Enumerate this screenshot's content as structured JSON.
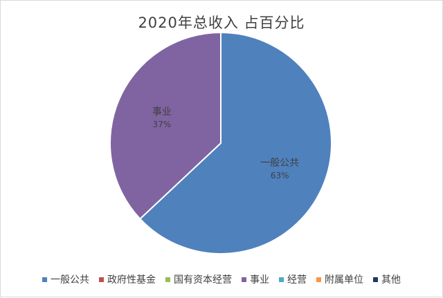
{
  "chart_data": {
    "type": "pie",
    "title": "2020年总收入 占百分比",
    "categories": [
      "一般公共",
      "政府性基金",
      "国有资本经营",
      "事业",
      "经营",
      "附属单位",
      "其他"
    ],
    "values": [
      63,
      0,
      0,
      37,
      0,
      0,
      0
    ],
    "colors": [
      "#4f81bd",
      "#c0504d",
      "#9bbb59",
      "#8064a2",
      "#4bacc6",
      "#f79646",
      "#1f3864"
    ],
    "data_labels": [
      {
        "category": "一般公共",
        "percent": "63%"
      },
      {
        "category": "事业",
        "percent": "37%"
      }
    ],
    "legend_position": "bottom"
  }
}
